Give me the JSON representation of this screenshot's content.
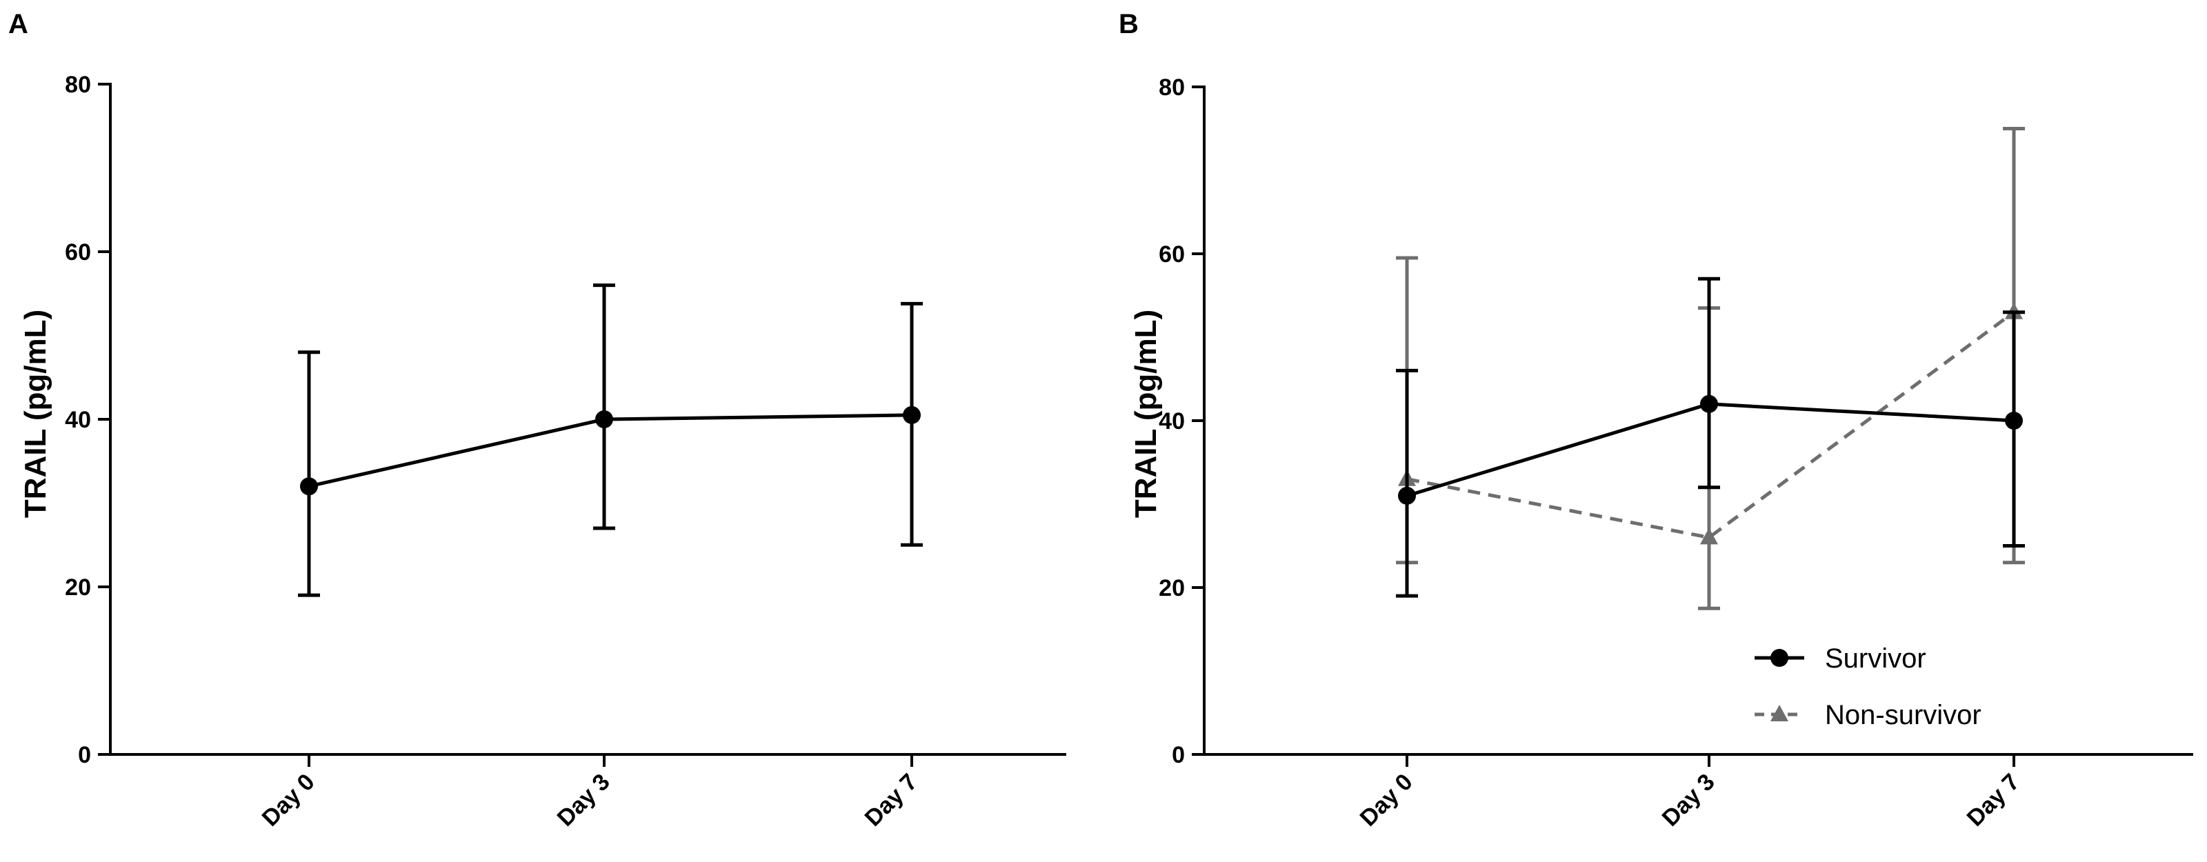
{
  "chart_data": [
    {
      "panel": "A",
      "type": "line",
      "ylabel": "TRAIL (pg/mL)",
      "xlabel": "",
      "categories": [
        "Day 0",
        "Day 3",
        "Day 7"
      ],
      "ylim": [
        0,
        80
      ],
      "yticks": [
        0,
        20,
        40,
        60,
        80
      ],
      "grid": false,
      "series": [
        {
          "values": [
            32,
            40,
            40.5
          ],
          "error_low": [
            19,
            27,
            25
          ],
          "error_high": [
            48,
            56,
            53.8
          ],
          "color": "#000000",
          "marker": "circle",
          "line_style": "solid"
        }
      ]
    },
    {
      "panel": "B",
      "type": "line",
      "ylabel": "TRAIL (pg/mL)",
      "xlabel": "",
      "categories": [
        "Day 0",
        "Day 3",
        "Day 7"
      ],
      "ylim": [
        0,
        80
      ],
      "yticks": [
        0,
        20,
        40,
        60,
        80
      ],
      "grid": false,
      "legend_position": "bottom-right",
      "series": [
        {
          "name": "Survivor",
          "values": [
            31,
            42,
            40
          ],
          "error_low": [
            19,
            32,
            25
          ],
          "error_high": [
            46,
            57,
            53
          ],
          "color": "#000000",
          "marker": "circle",
          "line_style": "solid"
        },
        {
          "name": "Non-survivor",
          "values": [
            33,
            26,
            53
          ],
          "error_low": [
            23,
            17.5,
            23
          ],
          "error_high": [
            59.5,
            53.5,
            75
          ],
          "color": "#6e6e6e",
          "marker": "triangle",
          "line_style": "dashed"
        }
      ]
    }
  ]
}
